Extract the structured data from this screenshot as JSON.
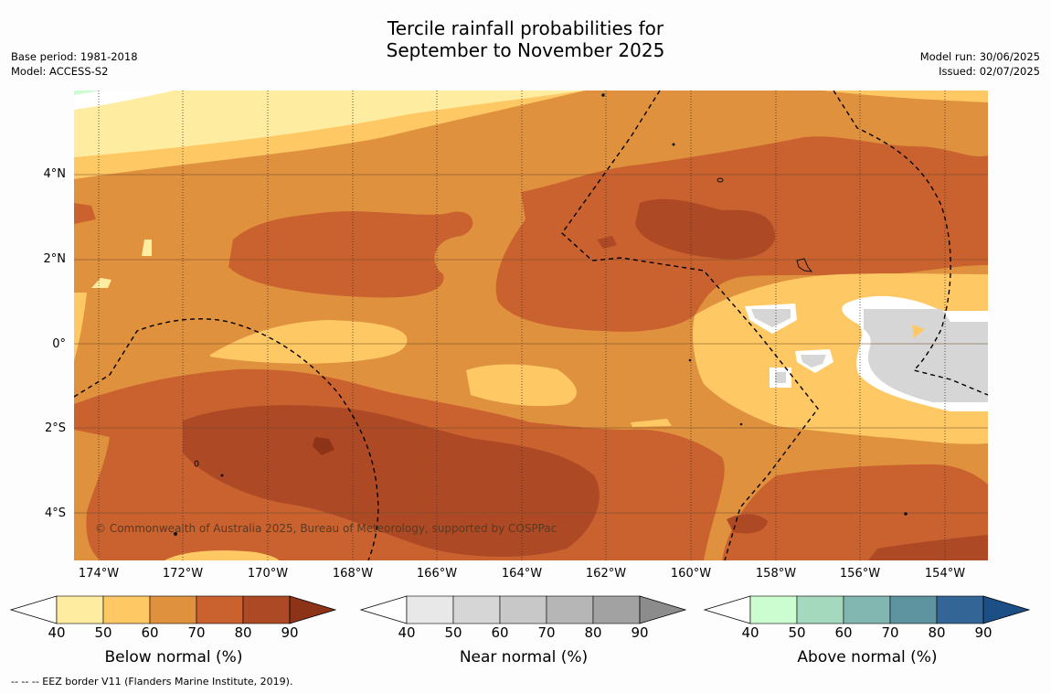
{
  "title": {
    "line1": "Tercile rainfall probabilities for",
    "line2": "September to November 2025"
  },
  "meta_left": {
    "base_period": "Base period: 1981-2018",
    "model": "Model: ACCESS-S2"
  },
  "meta_right": {
    "model_run": "Model run: 30/06/2025",
    "issued": "Issued: 02/07/2025"
  },
  "map": {
    "y_ticks": [
      "4°N",
      "2°N",
      "0°",
      "2°S",
      "4°S"
    ],
    "x_ticks": [
      "174°W",
      "172°W",
      "170°W",
      "168°W",
      "166°W",
      "164°W",
      "162°W",
      "160°W",
      "158°W",
      "156°W",
      "154°W"
    ],
    "copyright": "© Commonwealth of Australia 2025, Bureau of Meteorology, supported by COSPPac",
    "eez_style": "dashed black line",
    "land_color": "#111111"
  },
  "colorbars": [
    {
      "id": "below",
      "label": "Below normal (%)",
      "ticks": [
        "40",
        "50",
        "60",
        "70",
        "80",
        "90"
      ],
      "colors": [
        "#ffffff",
        "#feeca0",
        "#fec965",
        "#e0913e",
        "#ca6230",
        "#ad4a25",
        "#8c3318"
      ]
    },
    {
      "id": "near",
      "label": "Near normal (%)",
      "ticks": [
        "40",
        "50",
        "60",
        "70",
        "80",
        "90"
      ],
      "colors": [
        "#ffffff",
        "#e8e8e8",
        "#d6d6d6",
        "#c8c8c8",
        "#b6b6b6",
        "#a2a2a2",
        "#8c8c8c"
      ]
    },
    {
      "id": "above",
      "label": "Above normal (%)",
      "ticks": [
        "40",
        "50",
        "60",
        "70",
        "80",
        "90"
      ],
      "colors": [
        "#ffffff",
        "#ccfdd0",
        "#a4d9be",
        "#82b6b0",
        "#5e93a0",
        "#336697",
        "#1c4f85"
      ]
    }
  ],
  "footer": "--  --  -- EEZ border V11 (Flanders Marine Institute, 2019)."
}
